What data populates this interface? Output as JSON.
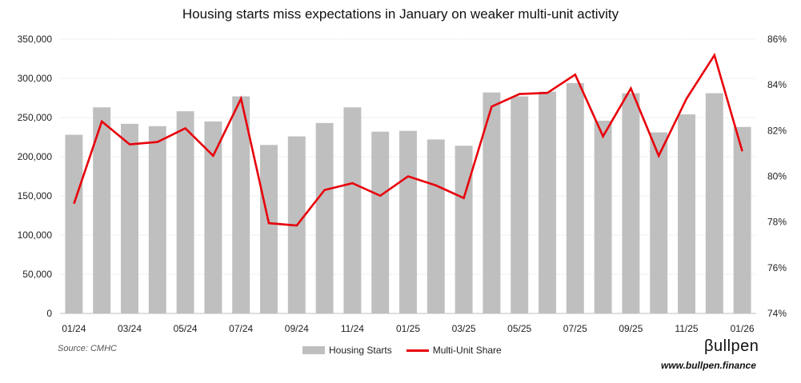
{
  "chart_data": {
    "type": "bar+line",
    "title": "Housing starts miss expectations in January on weaker multi-unit activity",
    "categories": [
      "01/24",
      "02/24",
      "03/24",
      "04/24",
      "05/24",
      "06/24",
      "07/24",
      "08/24",
      "09/24",
      "10/24",
      "11/24",
      "12/24",
      "01/25",
      "02/25",
      "03/25",
      "04/25",
      "05/25",
      "06/25",
      "07/25",
      "08/25",
      "09/25",
      "10/25",
      "11/25",
      "12/25",
      "01/26"
    ],
    "x_tick_labels": [
      "01/24",
      "03/24",
      "05/24",
      "07/24",
      "09/24",
      "11/24",
      "01/25",
      "03/25",
      "05/25",
      "07/25",
      "09/25",
      "11/25",
      "01/26"
    ],
    "series": [
      {
        "name": "Housing Starts",
        "type": "bar",
        "axis": "left",
        "color": "#bfbfbf",
        "values": [
          228000,
          263000,
          242000,
          239000,
          258000,
          245000,
          277000,
          215000,
          226000,
          243000,
          263000,
          232000,
          233000,
          222000,
          214000,
          282000,
          277000,
          283000,
          294000,
          246000,
          281000,
          231000,
          254000,
          281000,
          238000
        ]
      },
      {
        "name": "Multi-Unit Share",
        "type": "line",
        "axis": "right",
        "color": "#e8000b",
        "values": [
          78.8,
          82.4,
          81.4,
          81.5,
          82.1,
          80.9,
          83.4,
          77.95,
          77.85,
          79.4,
          79.7,
          79.15,
          80.0,
          79.6,
          79.05,
          83.05,
          83.6,
          83.65,
          84.45,
          81.75,
          83.85,
          80.9,
          83.4,
          85.3,
          81.1
        ]
      }
    ],
    "left_axis": {
      "min": 0,
      "max": 350000,
      "step": 50000,
      "tick_labels": [
        "0",
        "50,000",
        "100,000",
        "150,000",
        "200,000",
        "250,000",
        "300,000",
        "350,000"
      ]
    },
    "right_axis": {
      "min": 74,
      "max": 86,
      "step": 2,
      "tick_labels": [
        "74%",
        "76%",
        "78%",
        "80%",
        "82%",
        "84%",
        "86%"
      ]
    },
    "gridlines": true,
    "legend_position": "bottom"
  },
  "legend": {
    "bars_label": "Housing Starts",
    "line_label": "Multi-Unit Share"
  },
  "source": "Source: CMHC",
  "logo_text": "βullpen",
  "website": "www.bullpen.finance"
}
